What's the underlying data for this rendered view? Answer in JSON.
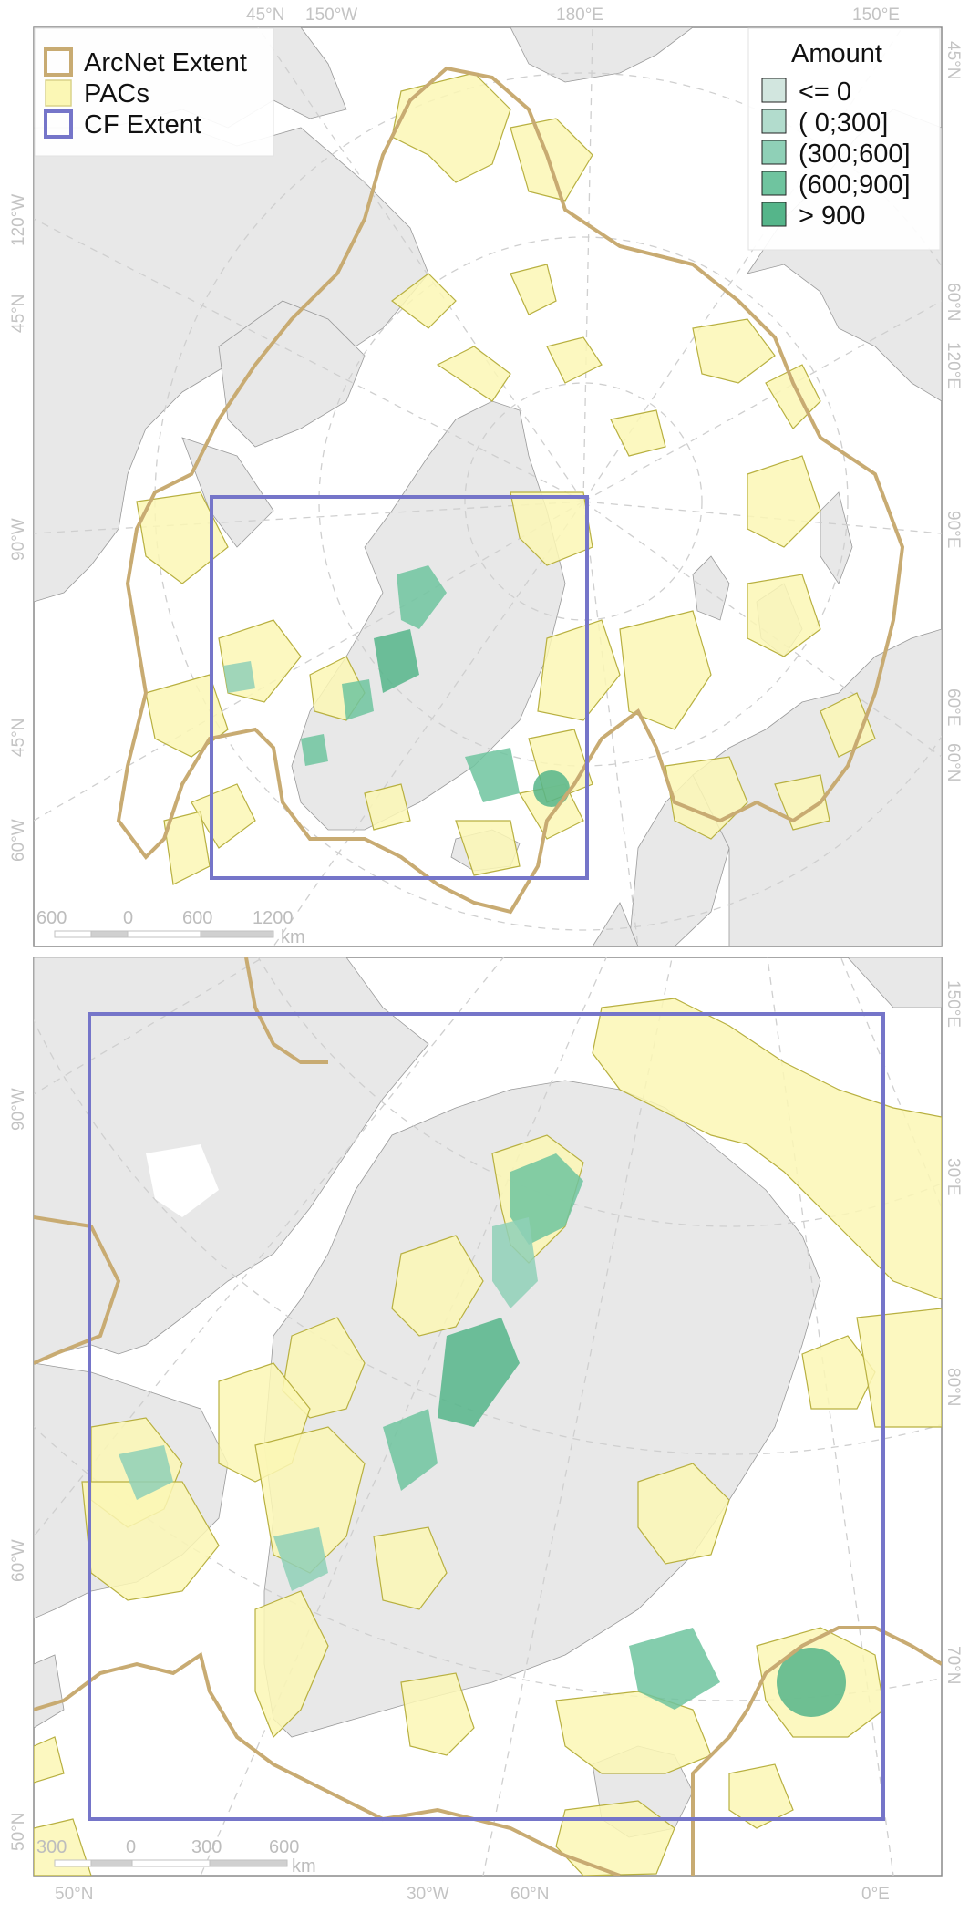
{
  "colors": {
    "land": "#e8e8e8",
    "land_border": "#9a9a9a",
    "sea": "#ffffff",
    "arcnet_border": "#c8ab72",
    "pac_fill": "#fbf7b5",
    "pac_border": "#b8b040",
    "cf_border": "#7575c9",
    "graticule": "#cfcfcf",
    "amount_classes": [
      "#d2e6df",
      "#b2dccd",
      "#8fd0b7",
      "#6fc49f",
      "#55b58a"
    ]
  },
  "legend": {
    "extent": {
      "arcnet": "ArcNet Extent",
      "pacs": "PACs",
      "cf": "CF Extent"
    },
    "amount": {
      "title": "Amount",
      "classes": [
        "<=   0",
        "(  0;300]",
        "(300;600]",
        "(600;900]",
        "> 900"
      ]
    }
  },
  "top_map": {
    "graticule_labels": {
      "top": [
        "45°N",
        "150°W",
        "180°E",
        "150°E"
      ],
      "left": [
        "120°W",
        "45°N",
        "90°W",
        "45°N",
        "60°W"
      ],
      "right": [
        "45°N",
        "60°N",
        "120°E",
        "90°E",
        "60°E",
        "60°N"
      ]
    },
    "scale_bar": {
      "labels": [
        "600",
        "0",
        "600",
        "1200"
      ],
      "unit": "km"
    }
  },
  "bottom_map": {
    "graticule_labels": {
      "bottom": [
        "50°N",
        "30°W",
        "60°N",
        "0°E"
      ],
      "left": [
        "90°W",
        "60°W",
        "50°N"
      ],
      "right": [
        "150°E",
        "30°E",
        "80°N",
        "70°N"
      ]
    },
    "scale_bar": {
      "labels": [
        "300",
        "0",
        "300",
        "600"
      ],
      "unit": "km"
    }
  }
}
